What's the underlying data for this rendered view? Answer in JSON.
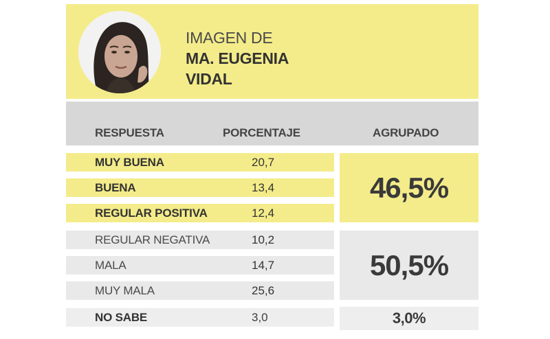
{
  "header": {
    "title_line1": "IMAGEN DE",
    "title_line2": "MA. EUGENIA",
    "title_line3": "VIDAL"
  },
  "columns": {
    "respuesta": "RESPUESTA",
    "porcentaje": "PORCENTAJE",
    "agrupado": "AGRUPADO"
  },
  "rows": [
    {
      "label": "MUY BUENA",
      "value": "20,7"
    },
    {
      "label": "BUENA",
      "value": "13,4"
    },
    {
      "label": "REGULAR POSITIVA",
      "value": "12,4"
    },
    {
      "label": "REGULAR NEGATIVA",
      "value": "10,2"
    },
    {
      "label": "MALA",
      "value": "14,7"
    },
    {
      "label": "MUY MALA",
      "value": "25,6"
    },
    {
      "label": "NO SABE",
      "value": "3,0"
    }
  ],
  "groups": {
    "positive": "46,5%",
    "negative": "50,5%",
    "no_sabe": "3,0%"
  },
  "colors": {
    "positive": "#f4ec8a",
    "negative": "#e9e9e9",
    "header_band": "#d7d7d7"
  },
  "chart_data": {
    "type": "table",
    "title": "IMAGEN DE MA. EUGENIA VIDAL",
    "columns": [
      "RESPUESTA",
      "PORCENTAJE",
      "AGRUPADO"
    ],
    "categories": [
      "MUY BUENA",
      "BUENA",
      "REGULAR POSITIVA",
      "REGULAR NEGATIVA",
      "MALA",
      "MUY MALA",
      "NO SABE"
    ],
    "values": [
      20.7,
      13.4,
      12.4,
      10.2,
      14.7,
      25.6,
      3.0
    ],
    "groups": [
      {
        "label": "46,5%",
        "value": 46.5,
        "members": [
          "MUY BUENA",
          "BUENA",
          "REGULAR POSITIVA"
        ]
      },
      {
        "label": "50,5%",
        "value": 50.5,
        "members": [
          "REGULAR NEGATIVA",
          "MALA",
          "MUY MALA"
        ]
      },
      {
        "label": "3,0%",
        "value": 3.0,
        "members": [
          "NO SABE"
        ]
      }
    ]
  }
}
